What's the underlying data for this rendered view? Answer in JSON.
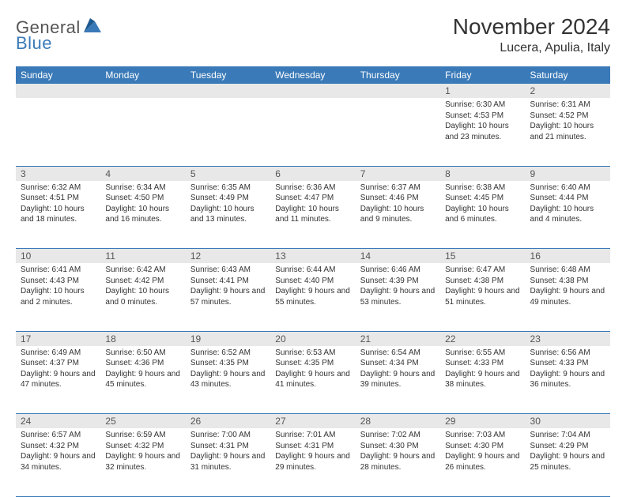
{
  "brand": {
    "general": "General",
    "blue": "Blue"
  },
  "title": "November 2024",
  "location": "Lucera, Apulia, Italy",
  "colors": {
    "header_blue": "#3a7ab8",
    "daynum_bg": "#e8e8e8",
    "text": "#333333",
    "rule": "#3a7ab8",
    "background": "#ffffff"
  },
  "typography": {
    "title_fontsize": 28,
    "location_fontsize": 16,
    "weekday_fontsize": 12,
    "daynum_fontsize": 12,
    "body_fontsize": 10
  },
  "weekdays": [
    "Sunday",
    "Monday",
    "Tuesday",
    "Wednesday",
    "Thursday",
    "Friday",
    "Saturday"
  ],
  "weeks": [
    [
      {
        "day": "",
        "sunrise": "",
        "sunset": "",
        "daylight": ""
      },
      {
        "day": "",
        "sunrise": "",
        "sunset": "",
        "daylight": ""
      },
      {
        "day": "",
        "sunrise": "",
        "sunset": "",
        "daylight": ""
      },
      {
        "day": "",
        "sunrise": "",
        "sunset": "",
        "daylight": ""
      },
      {
        "day": "",
        "sunrise": "",
        "sunset": "",
        "daylight": ""
      },
      {
        "day": "1",
        "sunrise": "Sunrise: 6:30 AM",
        "sunset": "Sunset: 4:53 PM",
        "daylight": "Daylight: 10 hours and 23 minutes."
      },
      {
        "day": "2",
        "sunrise": "Sunrise: 6:31 AM",
        "sunset": "Sunset: 4:52 PM",
        "daylight": "Daylight: 10 hours and 21 minutes."
      }
    ],
    [
      {
        "day": "3",
        "sunrise": "Sunrise: 6:32 AM",
        "sunset": "Sunset: 4:51 PM",
        "daylight": "Daylight: 10 hours and 18 minutes."
      },
      {
        "day": "4",
        "sunrise": "Sunrise: 6:34 AM",
        "sunset": "Sunset: 4:50 PM",
        "daylight": "Daylight: 10 hours and 16 minutes."
      },
      {
        "day": "5",
        "sunrise": "Sunrise: 6:35 AM",
        "sunset": "Sunset: 4:49 PM",
        "daylight": "Daylight: 10 hours and 13 minutes."
      },
      {
        "day": "6",
        "sunrise": "Sunrise: 6:36 AM",
        "sunset": "Sunset: 4:47 PM",
        "daylight": "Daylight: 10 hours and 11 minutes."
      },
      {
        "day": "7",
        "sunrise": "Sunrise: 6:37 AM",
        "sunset": "Sunset: 4:46 PM",
        "daylight": "Daylight: 10 hours and 9 minutes."
      },
      {
        "day": "8",
        "sunrise": "Sunrise: 6:38 AM",
        "sunset": "Sunset: 4:45 PM",
        "daylight": "Daylight: 10 hours and 6 minutes."
      },
      {
        "day": "9",
        "sunrise": "Sunrise: 6:40 AM",
        "sunset": "Sunset: 4:44 PM",
        "daylight": "Daylight: 10 hours and 4 minutes."
      }
    ],
    [
      {
        "day": "10",
        "sunrise": "Sunrise: 6:41 AM",
        "sunset": "Sunset: 4:43 PM",
        "daylight": "Daylight: 10 hours and 2 minutes."
      },
      {
        "day": "11",
        "sunrise": "Sunrise: 6:42 AM",
        "sunset": "Sunset: 4:42 PM",
        "daylight": "Daylight: 10 hours and 0 minutes."
      },
      {
        "day": "12",
        "sunrise": "Sunrise: 6:43 AM",
        "sunset": "Sunset: 4:41 PM",
        "daylight": "Daylight: 9 hours and 57 minutes."
      },
      {
        "day": "13",
        "sunrise": "Sunrise: 6:44 AM",
        "sunset": "Sunset: 4:40 PM",
        "daylight": "Daylight: 9 hours and 55 minutes."
      },
      {
        "day": "14",
        "sunrise": "Sunrise: 6:46 AM",
        "sunset": "Sunset: 4:39 PM",
        "daylight": "Daylight: 9 hours and 53 minutes."
      },
      {
        "day": "15",
        "sunrise": "Sunrise: 6:47 AM",
        "sunset": "Sunset: 4:38 PM",
        "daylight": "Daylight: 9 hours and 51 minutes."
      },
      {
        "day": "16",
        "sunrise": "Sunrise: 6:48 AM",
        "sunset": "Sunset: 4:38 PM",
        "daylight": "Daylight: 9 hours and 49 minutes."
      }
    ],
    [
      {
        "day": "17",
        "sunrise": "Sunrise: 6:49 AM",
        "sunset": "Sunset: 4:37 PM",
        "daylight": "Daylight: 9 hours and 47 minutes."
      },
      {
        "day": "18",
        "sunrise": "Sunrise: 6:50 AM",
        "sunset": "Sunset: 4:36 PM",
        "daylight": "Daylight: 9 hours and 45 minutes."
      },
      {
        "day": "19",
        "sunrise": "Sunrise: 6:52 AM",
        "sunset": "Sunset: 4:35 PM",
        "daylight": "Daylight: 9 hours and 43 minutes."
      },
      {
        "day": "20",
        "sunrise": "Sunrise: 6:53 AM",
        "sunset": "Sunset: 4:35 PM",
        "daylight": "Daylight: 9 hours and 41 minutes."
      },
      {
        "day": "21",
        "sunrise": "Sunrise: 6:54 AM",
        "sunset": "Sunset: 4:34 PM",
        "daylight": "Daylight: 9 hours and 39 minutes."
      },
      {
        "day": "22",
        "sunrise": "Sunrise: 6:55 AM",
        "sunset": "Sunset: 4:33 PM",
        "daylight": "Daylight: 9 hours and 38 minutes."
      },
      {
        "day": "23",
        "sunrise": "Sunrise: 6:56 AM",
        "sunset": "Sunset: 4:33 PM",
        "daylight": "Daylight: 9 hours and 36 minutes."
      }
    ],
    [
      {
        "day": "24",
        "sunrise": "Sunrise: 6:57 AM",
        "sunset": "Sunset: 4:32 PM",
        "daylight": "Daylight: 9 hours and 34 minutes."
      },
      {
        "day": "25",
        "sunrise": "Sunrise: 6:59 AM",
        "sunset": "Sunset: 4:32 PM",
        "daylight": "Daylight: 9 hours and 32 minutes."
      },
      {
        "day": "26",
        "sunrise": "Sunrise: 7:00 AM",
        "sunset": "Sunset: 4:31 PM",
        "daylight": "Daylight: 9 hours and 31 minutes."
      },
      {
        "day": "27",
        "sunrise": "Sunrise: 7:01 AM",
        "sunset": "Sunset: 4:31 PM",
        "daylight": "Daylight: 9 hours and 29 minutes."
      },
      {
        "day": "28",
        "sunrise": "Sunrise: 7:02 AM",
        "sunset": "Sunset: 4:30 PM",
        "daylight": "Daylight: 9 hours and 28 minutes."
      },
      {
        "day": "29",
        "sunrise": "Sunrise: 7:03 AM",
        "sunset": "Sunset: 4:30 PM",
        "daylight": "Daylight: 9 hours and 26 minutes."
      },
      {
        "day": "30",
        "sunrise": "Sunrise: 7:04 AM",
        "sunset": "Sunset: 4:29 PM",
        "daylight": "Daylight: 9 hours and 25 minutes."
      }
    ]
  ]
}
